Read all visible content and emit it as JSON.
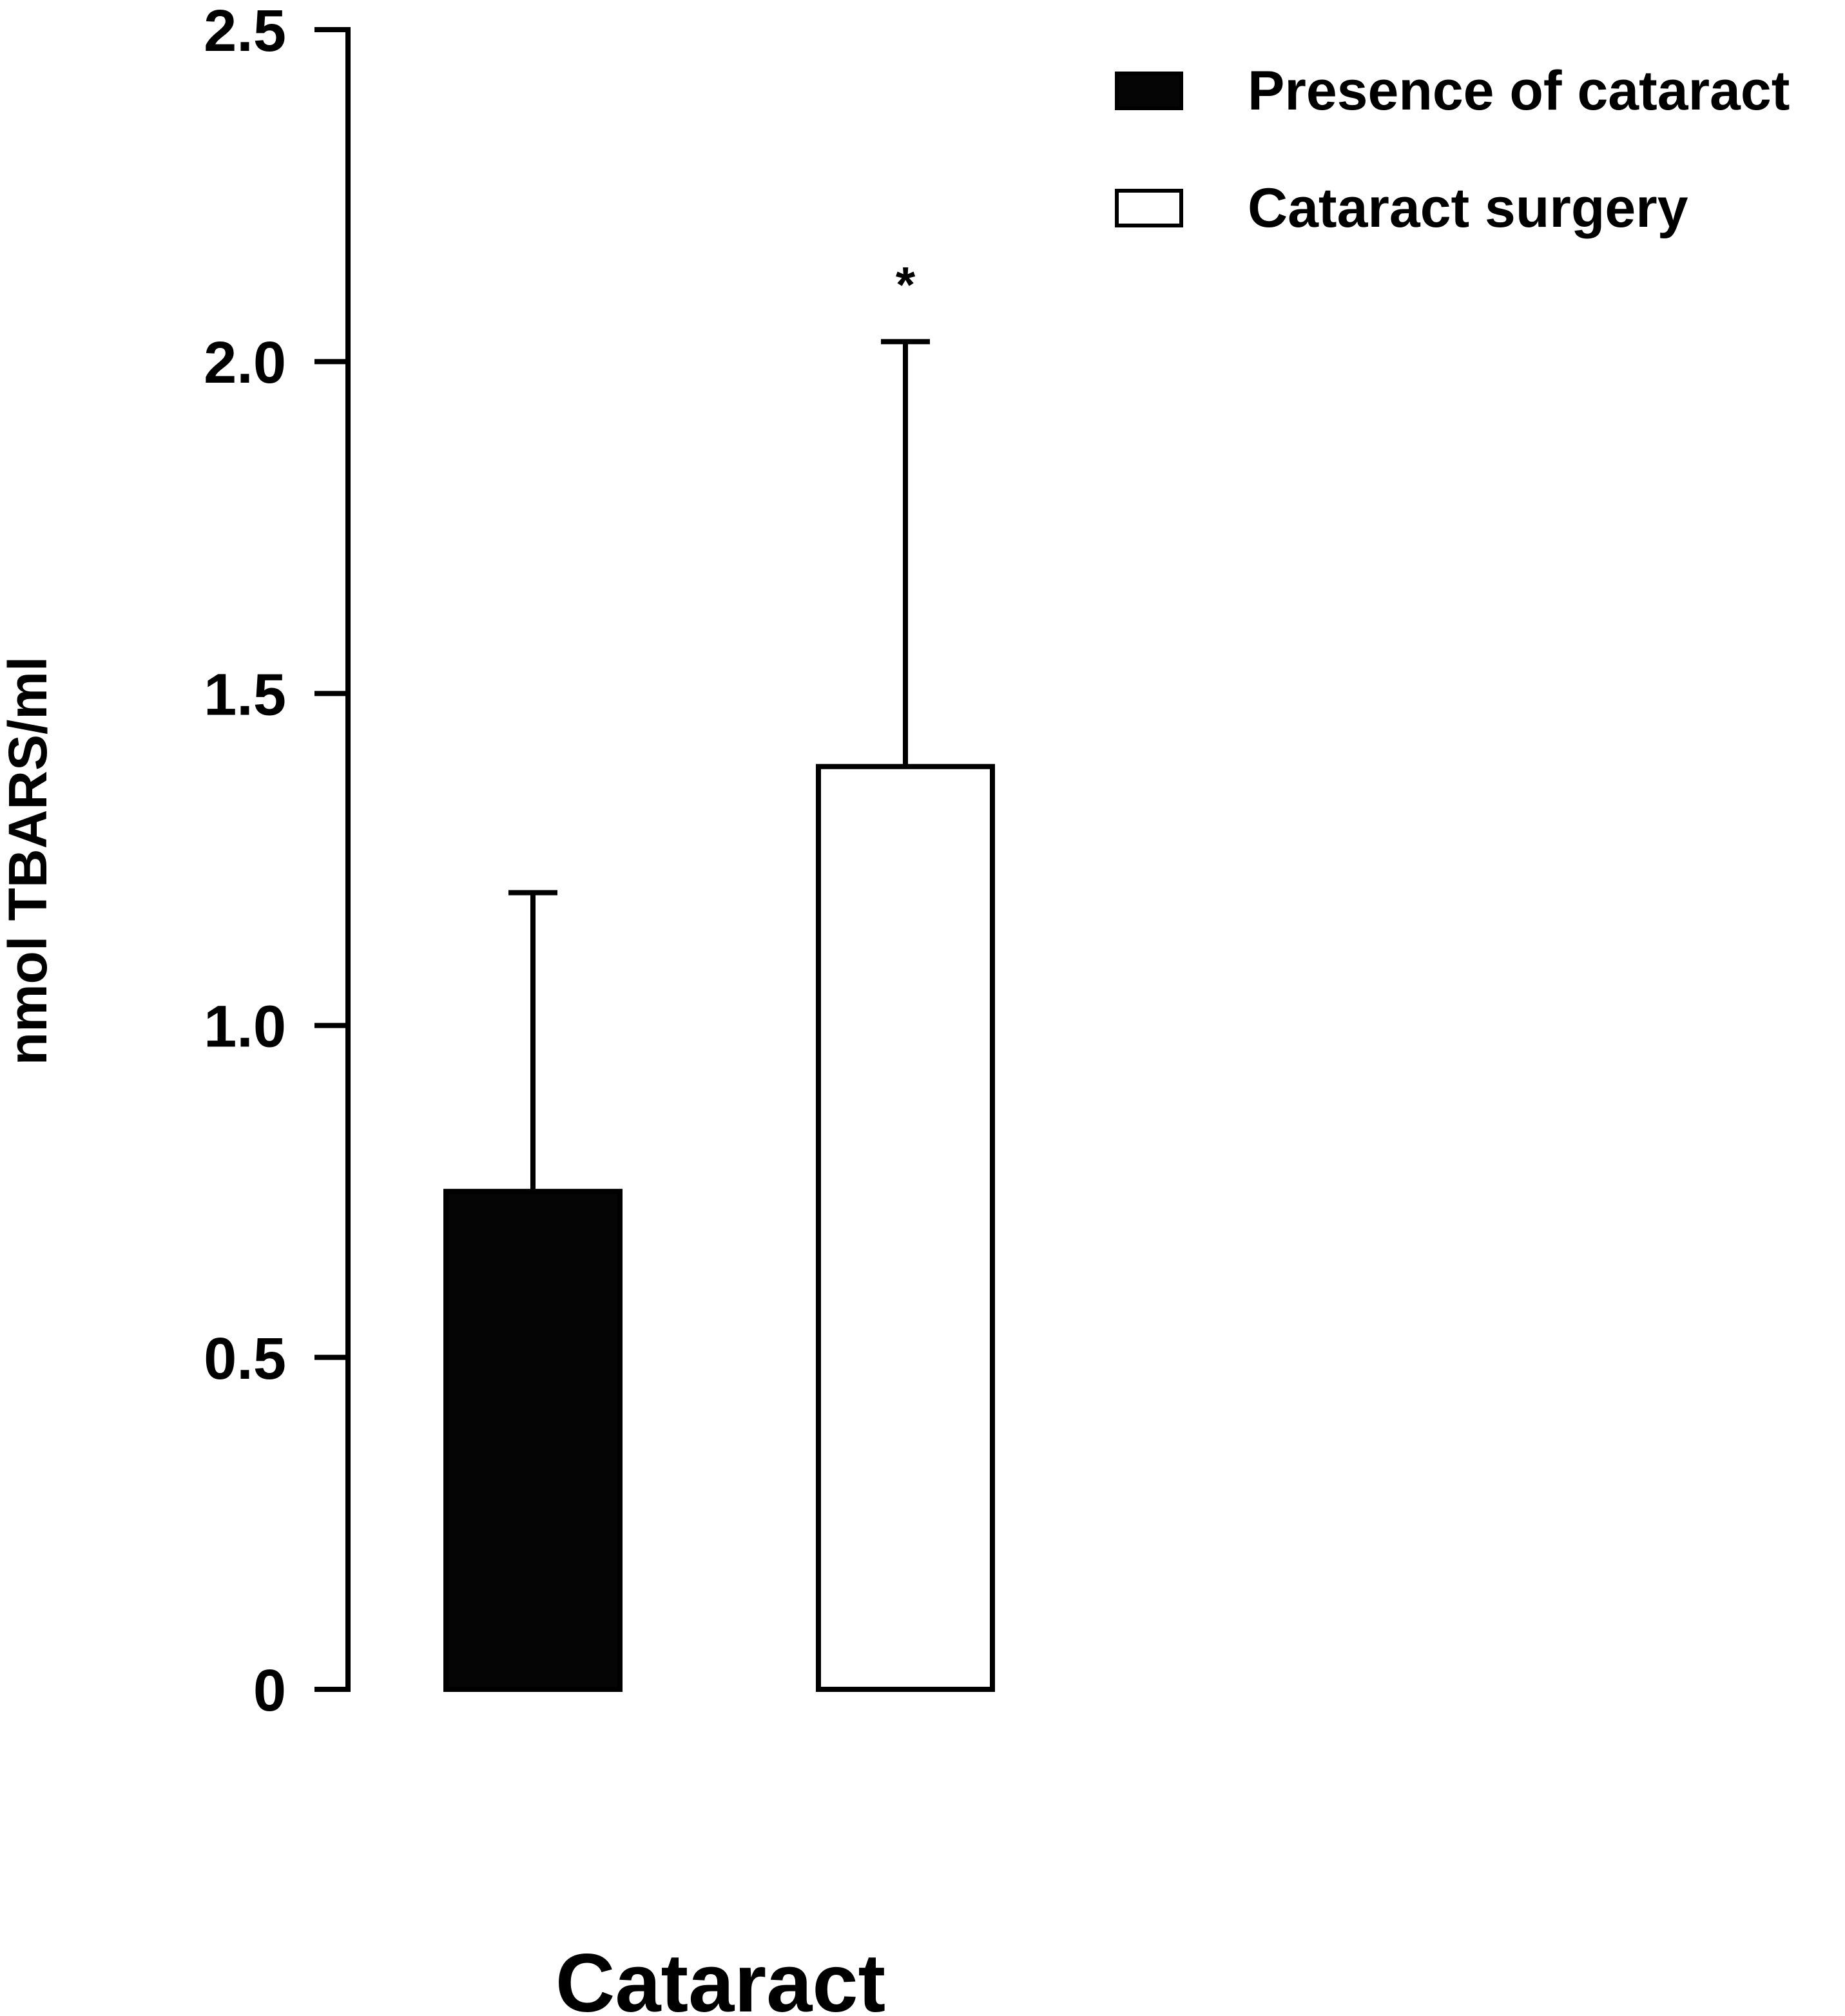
{
  "chart_data": {
    "type": "bar",
    "title": "",
    "xlabel": "Cataract",
    "ylabel": "nmol TBARS/ml",
    "ylim": [
      0,
      2.5
    ],
    "yticks": [
      0,
      0.5,
      1.0,
      1.5,
      2.0,
      2.5
    ],
    "ytick_labels": [
      "0",
      "0.5",
      "1.0",
      "1.5",
      "2.0",
      "2.5"
    ],
    "grid": false,
    "legend_position": "top-right",
    "series": [
      {
        "name": "Presence of cataract",
        "value": 0.75,
        "error": 0.45,
        "fill": "#050505",
        "annotation": ""
      },
      {
        "name": "Cataract surgery",
        "value": 1.39,
        "error": 0.64,
        "fill": "#ffffff",
        "annotation": "*"
      }
    ]
  }
}
